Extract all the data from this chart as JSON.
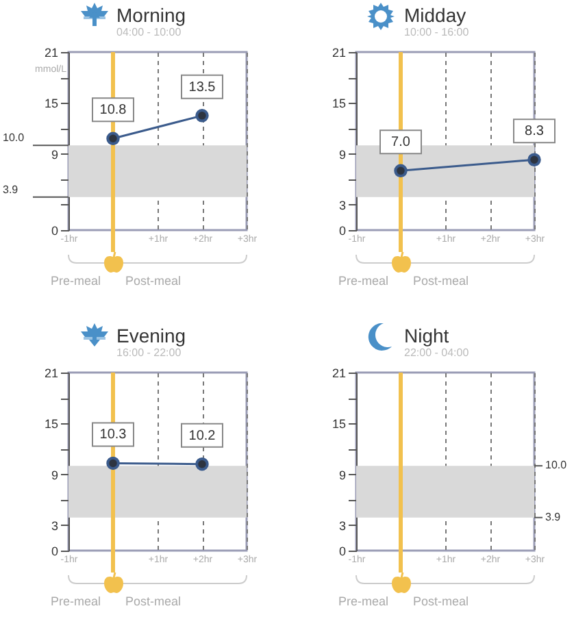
{
  "chart_data": [
    {
      "type": "line",
      "title": "Morning",
      "subtitle": "04:00 - 10:00",
      "ylabel": "mmol/L",
      "x": [
        0,
        2
      ],
      "series": [
        {
          "color": "#3b5b8c",
          "values": [
            10.8,
            13.5
          ],
          "value_labels": [
            "10.8",
            "13.5"
          ]
        }
      ],
      "xlim": [
        -1,
        3
      ],
      "xticks": [
        {
          "value": -1,
          "label": "-1hr"
        },
        {
          "value": 1,
          "label": "+1hr"
        },
        {
          "value": 2,
          "label": "+2hr"
        },
        {
          "value": 3,
          "label": "+3hr"
        }
      ],
      "ylim": [
        0,
        21
      ],
      "yticks": [
        0,
        {
          "value": 3,
          "label": null
        },
        {
          "value": 6,
          "label": null
        },
        9,
        {
          "value": 12,
          "label": null
        },
        15,
        {
          "value": 18,
          "label": null
        },
        21
      ],
      "grid": "x",
      "marker": "circle",
      "bands": [
        {
          "axis": "y",
          "from": 3.9,
          "to": 10.0,
          "color": "#d9d9d9"
        }
      ],
      "ref_lines": [
        {
          "axis": "x",
          "value": 0,
          "color": "#f2c14e"
        },
        {
          "axis": "y",
          "value": 10.0,
          "label": "10.0"
        },
        {
          "axis": "y",
          "value": 3.9,
          "label": "3.9"
        }
      ],
      "annotations": [
        "Pre-meal",
        "Post-meal"
      ]
    },
    {
      "type": "line",
      "title": "Midday",
      "subtitle": "10:00 - 16:00",
      "x": [
        0,
        3
      ],
      "series": [
        {
          "color": "#3b5b8c",
          "values": [
            7.0,
            8.3
          ],
          "value_labels": [
            "7.0",
            "8.3"
          ]
        }
      ],
      "xlim": [
        -1,
        3
      ],
      "xticks": [
        {
          "value": -1,
          "label": "-1hr"
        },
        {
          "value": 1,
          "label": "+1hr"
        },
        {
          "value": 2,
          "label": "+2hr"
        },
        {
          "value": 3,
          "label": "+3hr"
        }
      ],
      "ylim": [
        0,
        21
      ],
      "yticks": [
        0,
        3,
        {
          "value": 6,
          "label": null
        },
        9,
        {
          "value": 12,
          "label": null
        },
        15,
        {
          "value": 18,
          "label": null
        },
        21
      ],
      "grid": "x",
      "marker": "circle",
      "bands": [
        {
          "axis": "y",
          "from": 3.9,
          "to": 10.0,
          "color": "#d9d9d9"
        }
      ],
      "ref_lines": [
        {
          "axis": "x",
          "value": 0,
          "color": "#f2c14e"
        }
      ],
      "annotations": [
        "Pre-meal",
        "Post-meal"
      ]
    },
    {
      "type": "line",
      "title": "Evening",
      "subtitle": "16:00 - 22:00",
      "x": [
        0,
        2
      ],
      "series": [
        {
          "color": "#3b5b8c",
          "values": [
            10.3,
            10.2
          ],
          "value_labels": [
            "10.3",
            "10.2"
          ]
        }
      ],
      "xlim": [
        -1,
        3
      ],
      "xticks": [
        {
          "value": -1,
          "label": "-1hr"
        },
        {
          "value": 1,
          "label": "+1hr"
        },
        {
          "value": 2,
          "label": "+2hr"
        },
        {
          "value": 3,
          "label": "+3hr"
        }
      ],
      "ylim": [
        0,
        21
      ],
      "yticks": [
        0,
        3,
        {
          "value": 6,
          "label": null
        },
        9,
        {
          "value": 12,
          "label": null
        },
        15,
        {
          "value": 18,
          "label": null
        },
        21
      ],
      "grid": "x",
      "marker": "circle",
      "bands": [
        {
          "axis": "y",
          "from": 3.9,
          "to": 10.0,
          "color": "#d9d9d9"
        }
      ],
      "ref_lines": [
        {
          "axis": "x",
          "value": 0,
          "color": "#f2c14e"
        }
      ],
      "annotations": [
        "Pre-meal",
        "Post-meal"
      ]
    },
    {
      "type": "line",
      "title": "Night",
      "subtitle": "22:00 - 04:00",
      "xlim": [
        -1,
        3
      ],
      "xticks": [
        {
          "value": -1,
          "label": "-1hr"
        },
        {
          "value": 1,
          "label": "+1hr"
        },
        {
          "value": 2,
          "label": "+2hr"
        },
        {
          "value": 3,
          "label": "+3hr"
        }
      ],
      "ylim": [
        0,
        21
      ],
      "yticks": [
        0,
        3,
        {
          "value": 6,
          "label": null
        },
        9,
        {
          "value": 12,
          "label": null
        },
        15,
        {
          "value": 18,
          "label": null
        },
        21
      ],
      "grid": "x",
      "bands": [
        {
          "axis": "y",
          "from": 3.9,
          "to": 10.0,
          "color": "#d9d9d9"
        }
      ],
      "ref_lines": [
        {
          "axis": "x",
          "value": 0,
          "color": "#f2c14e"
        },
        {
          "axis": "y",
          "value": 10.0,
          "label": "10.0"
        },
        {
          "axis": "y",
          "value": 3.9,
          "label": "3.9"
        }
      ],
      "annotations": [
        "Pre-meal",
        "Post-meal"
      ]
    }
  ]
}
